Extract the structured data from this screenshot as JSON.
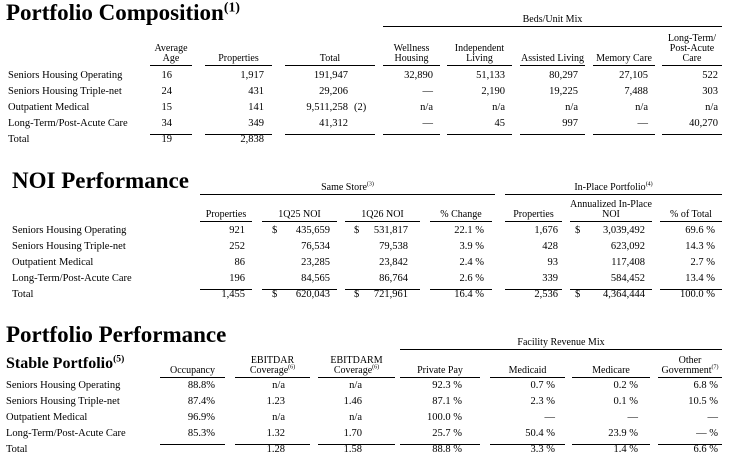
{
  "portfolio_composition": {
    "title": "Portfolio Composition",
    "title_note": "(1)",
    "group_headers": [
      {
        "text": "Beds/Unit Mix"
      }
    ],
    "columns": [
      "Average Age",
      "Properties",
      "Total",
      "Wellness Housing",
      "Independent Living",
      "Assisted Living",
      "Memory Care",
      "Long-Term/ Post-Acute Care"
    ],
    "rows": [
      {
        "label": "Seniors Housing Operating",
        "cells": [
          "16",
          "1,917",
          "191,947",
          "32,890",
          "51,133",
          "80,297",
          "27,105",
          "522"
        ]
      },
      {
        "label": "Seniors Housing Triple-net",
        "cells": [
          "24",
          "431",
          "29,206",
          "—",
          "2,190",
          "19,225",
          "7,488",
          "303"
        ]
      },
      {
        "label": "Outpatient Medical",
        "cells": [
          "15",
          "141",
          {
            "value": "9,511,258",
            "note": "(2)"
          },
          "n/a",
          "n/a",
          "n/a",
          "n/a",
          "n/a"
        ]
      },
      {
        "label": "Long-Term/Post-Acute Care",
        "cells": [
          "34",
          "349",
          "41,312",
          "—",
          "45",
          "997",
          "—",
          "40,270"
        ]
      },
      {
        "label": "Total",
        "cells": [
          "19",
          "2,838",
          null,
          null,
          null,
          null,
          null,
          null
        ]
      }
    ]
  },
  "noi_performance": {
    "title": "NOI Performance",
    "group_headers": [
      {
        "text": "Same Store",
        "note": "(3)"
      },
      {
        "text": "In-Place Portfolio",
        "note": "(4)"
      }
    ],
    "columns": [
      "Properties",
      "1Q25 NOI",
      "1Q26 NOI",
      "% Change",
      "Properties",
      "Annualized In-Place NOI",
      "% of Total"
    ],
    "rows": [
      {
        "label": "Seniors Housing Operating",
        "cells": [
          "921",
          {
            "symbol": "$",
            "value": "435,659"
          },
          {
            "symbol": "$",
            "value": "531,817"
          },
          "22.1 %",
          "1,676",
          {
            "symbol": "$",
            "value": "3,039,492"
          },
          "69.6 %"
        ]
      },
      {
        "label": "Seniors Housing Triple-net",
        "cells": [
          "252",
          "76,534",
          "79,538",
          "3.9 %",
          "428",
          "623,092",
          "14.3 %"
        ]
      },
      {
        "label": "Outpatient Medical",
        "cells": [
          "86",
          "23,285",
          "23,842",
          "2.4 %",
          "93",
          "117,408",
          "2.7 %"
        ]
      },
      {
        "label": "Long-Term/Post-Acute Care",
        "cells": [
          "196",
          "84,565",
          "86,764",
          "2.6 %",
          "339",
          "584,452",
          "13.4 %"
        ]
      },
      {
        "label": "Total",
        "cells": [
          "1,455",
          {
            "symbol": "$",
            "value": "620,043"
          },
          {
            "symbol": "$",
            "value": "721,961"
          },
          "16.4 %",
          "2,536",
          {
            "symbol": "$",
            "value": "4,364,444"
          },
          "100.0 %"
        ]
      }
    ]
  },
  "portfolio_performance": {
    "title": "Portfolio Performance",
    "subtitle": "Stable Portfolio",
    "subtitle_note": "(5)",
    "group_headers": [
      {
        "text": "Facility Revenue Mix"
      }
    ],
    "columns": [
      "Occupancy",
      {
        "text": "EBITDAR Coverage",
        "note": "(6)"
      },
      {
        "text": "EBITDARM Coverage",
        "note": "(6)"
      },
      "Private Pay",
      "Medicaid",
      "Medicare",
      {
        "text": "Other Government",
        "note": "(7)"
      }
    ],
    "rows": [
      {
        "label": "Seniors Housing Operating",
        "cells": [
          "88.8%",
          "n/a",
          "n/a",
          "92.3 %",
          "0.7 %",
          "0.2 %",
          "6.8 %"
        ]
      },
      {
        "label": "Seniors Housing Triple-net",
        "cells": [
          "87.4%",
          "1.23",
          "1.46",
          "87.1 %",
          "2.3 %",
          "0.1 %",
          "10.5 %"
        ]
      },
      {
        "label": "Outpatient Medical",
        "cells": [
          "96.9%",
          "n/a",
          "n/a",
          "100.0 %",
          "—",
          "—",
          "—"
        ]
      },
      {
        "label": "Long-Term/Post-Acute Care",
        "cells": [
          "85.3%",
          "1.32",
          "1.70",
          "25.7 %",
          "50.4 %",
          "23.9 %",
          "— %"
        ]
      },
      {
        "label": "Total",
        "cells": [
          null,
          "1.28",
          "1.58",
          "88.8 %",
          "3.3 %",
          "1.4 %",
          "6.6 %"
        ]
      }
    ]
  }
}
